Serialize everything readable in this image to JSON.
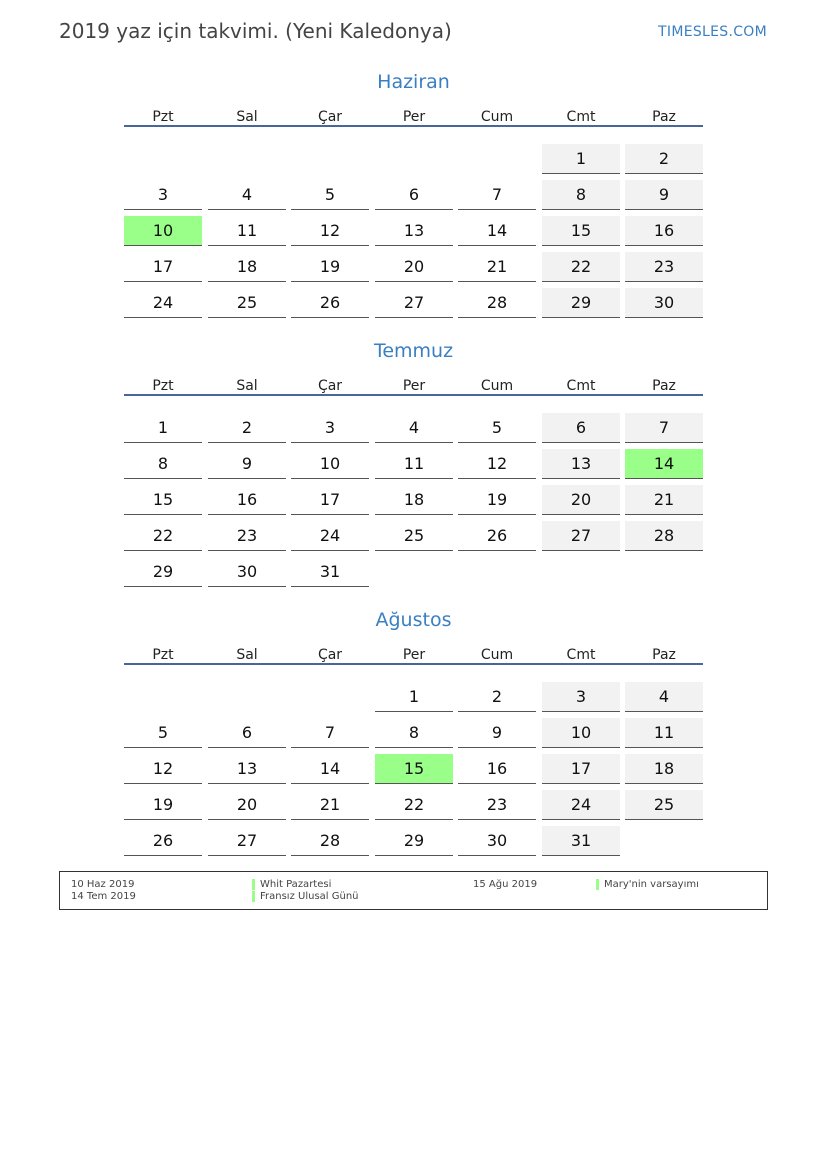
{
  "header": {
    "title": "2019 yaz için takvimi. (Yeni Kaledonya)",
    "brand": "TIMESLES.COM"
  },
  "weekdays": [
    "Pzt",
    "Sal",
    "Çar",
    "Per",
    "Cum",
    "Cmt",
    "Paz"
  ],
  "colors": {
    "accent": "#3a7fc1",
    "holiday": "#99ff88",
    "weekend": "#f2f2f2",
    "rule": "#4a6597"
  },
  "months": [
    {
      "name": "Haziran",
      "start_offset": 5,
      "days": 30,
      "holidays": [
        10
      ]
    },
    {
      "name": "Temmuz",
      "start_offset": 0,
      "days": 31,
      "holidays": [
        14
      ]
    },
    {
      "name": "Ağustos",
      "start_offset": 3,
      "days": 31,
      "holidays": [
        15
      ]
    }
  ],
  "legend": [
    {
      "date": "10 Haz 2019",
      "name": "Whit Pazartesi"
    },
    {
      "date": "14 Tem 2019",
      "name": "Fransız Ulusal Günü"
    },
    {
      "date": "15 Ağu 2019",
      "name": "Mary'nin varsayımı"
    }
  ]
}
